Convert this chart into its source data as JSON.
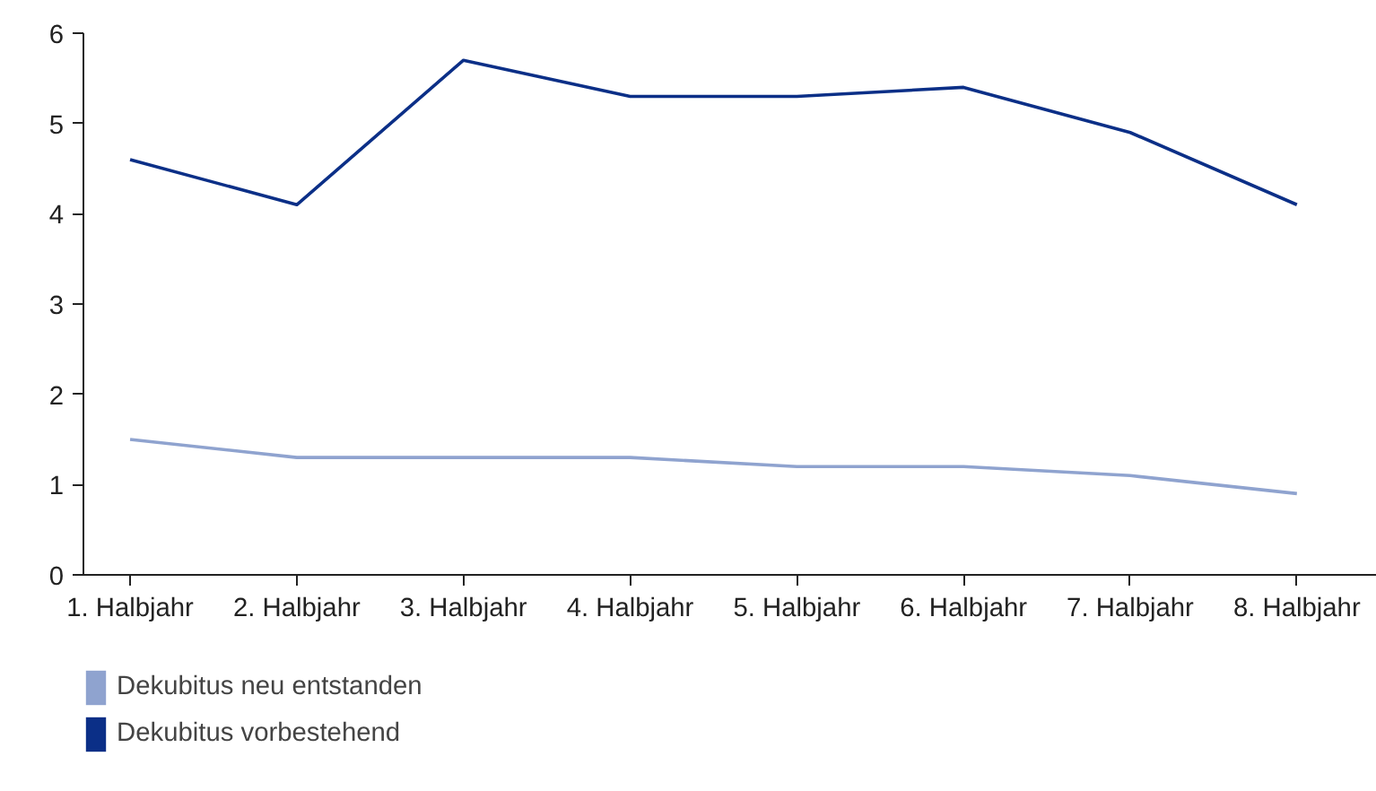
{
  "chart_data": {
    "type": "line",
    "categories": [
      "1. Halbjahr",
      "2. Halbjahr",
      "3. Halbjahr",
      "4. Halbjahr",
      "5. Halbjahr",
      "6. Halbjahr",
      "7. Halbjahr",
      "8. Halbjahr"
    ],
    "series": [
      {
        "name": "Dekubitus neu entstanden",
        "color": "#8fa3cf",
        "values": [
          1.5,
          1.3,
          1.3,
          1.3,
          1.2,
          1.2,
          1.1,
          0.9
        ]
      },
      {
        "name": "Dekubitus vorbestehend",
        "color": "#0b2f87",
        "values": [
          4.6,
          4.1,
          5.7,
          5.3,
          5.3,
          5.4,
          4.9,
          4.1
        ]
      }
    ],
    "ylim": [
      0,
      6
    ],
    "yticks": [
      0,
      1,
      2,
      3,
      4,
      5,
      6
    ],
    "grid": false,
    "legend": "bottom",
    "marker": "none",
    "line_style": "solid"
  }
}
